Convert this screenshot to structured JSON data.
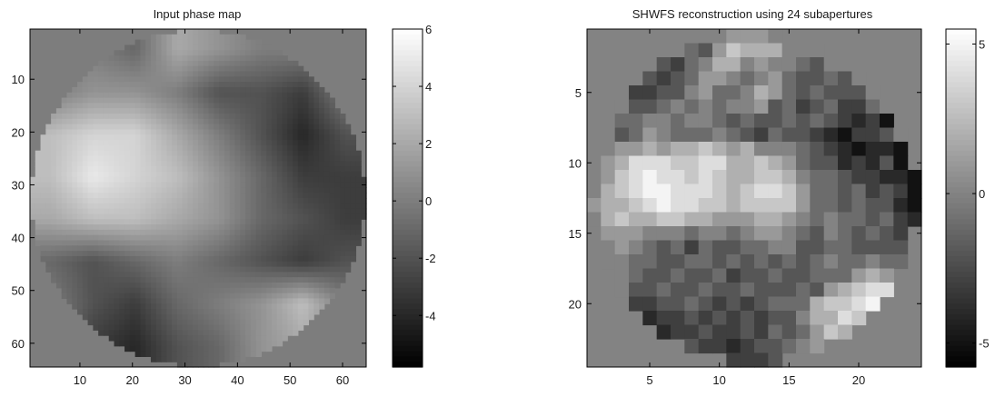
{
  "chart_data": [
    {
      "type": "heatmap",
      "title": "Input phase map",
      "xlabel": "",
      "ylabel": "",
      "grid": false,
      "x_range": [
        0.5,
        64.5
      ],
      "y_range": [
        0.5,
        64.5
      ],
      "y_direction": "top-down",
      "x_ticks": [
        10,
        20,
        30,
        40,
        50,
        60
      ],
      "y_ticks": [
        10,
        20,
        30,
        40,
        50,
        60
      ],
      "x_tick_labels": [
        "10",
        "20",
        "30",
        "40",
        "50",
        "60"
      ],
      "y_tick_labels": [
        "10",
        "20",
        "30",
        "40",
        "50",
        "60"
      ],
      "colorbar": {
        "range": [
          -5.8,
          6.0
        ],
        "ticks": [
          -4,
          -2,
          0,
          2,
          4,
          6
        ],
        "tick_labels": [
          "-4",
          "-2",
          "0",
          "2",
          "4",
          "6"
        ],
        "colormap": "gray",
        "placement": "right"
      },
      "grid_size": 64,
      "aperture": "circular",
      "background_value": 0,
      "coarse_values_8x8": [
        [
          0,
          0,
          -1,
          2,
          1,
          0,
          0,
          0
        ],
        [
          0,
          1,
          1,
          0,
          -2,
          -2,
          -3,
          0
        ],
        [
          3,
          4,
          4,
          2,
          0,
          -2,
          -4,
          -2
        ],
        [
          3,
          5,
          4,
          3,
          1,
          -1,
          -3,
          -3
        ],
        [
          2,
          3,
          3,
          2,
          1,
          -1,
          -2,
          -3
        ],
        [
          -1,
          -2,
          -1,
          0,
          -1,
          -2,
          -3,
          -2
        ],
        [
          0,
          -2,
          -3,
          -1,
          0,
          1,
          3,
          0
        ],
        [
          0,
          -3,
          -4,
          -2,
          -1,
          1,
          2,
          0
        ]
      ]
    },
    {
      "type": "heatmap",
      "title": "SHWFS reconstruction using 24 subapertures",
      "xlabel": "",
      "ylabel": "",
      "grid": false,
      "x_range": [
        0.5,
        24.5
      ],
      "y_range": [
        0.5,
        24.5
      ],
      "y_direction": "top-down",
      "x_ticks": [
        5,
        10,
        15,
        20
      ],
      "y_ticks": [
        5,
        10,
        15,
        20
      ],
      "x_tick_labels": [
        "5",
        "10",
        "15",
        "20"
      ],
      "y_tick_labels": [
        "5",
        "10",
        "15",
        "20"
      ],
      "colorbar": {
        "range": [
          -5.8,
          5.5
        ],
        "ticks": [
          -5,
          0,
          5
        ],
        "tick_labels": [
          "-5",
          "0",
          "5"
        ],
        "colormap": "gray",
        "placement": "right"
      },
      "grid_size": 24,
      "aperture": "circular",
      "background_value": 0,
      "values": [
        [
          0,
          0,
          0,
          0,
          0,
          0,
          0,
          0,
          0,
          1,
          1,
          1,
          1,
          0,
          1,
          0,
          0,
          0,
          0,
          0,
          0,
          0,
          0,
          0
        ],
        [
          0,
          0,
          0,
          0,
          0,
          0,
          0,
          -1,
          -2,
          1,
          3,
          2,
          2,
          2,
          0,
          0,
          0,
          0,
          0,
          0,
          0,
          0,
          0,
          0
        ],
        [
          0,
          0,
          0,
          0,
          0,
          -2,
          -3,
          -1,
          0,
          2,
          2,
          0,
          1,
          0,
          0,
          -1,
          -2,
          0,
          0,
          0,
          0,
          0,
          0,
          0
        ],
        [
          0,
          0,
          0,
          0,
          -2,
          -3,
          -2,
          -1,
          1,
          1,
          0,
          -1,
          0,
          1,
          -1,
          -2,
          -2,
          -1,
          -2,
          0,
          0,
          0,
          0,
          0
        ],
        [
          0,
          0,
          0,
          -3,
          -3,
          -2,
          -2,
          0,
          1,
          -1,
          -1,
          0,
          2,
          1,
          -1,
          -2,
          -1,
          -2,
          -2,
          -2,
          0,
          0,
          0,
          0
        ],
        [
          0,
          0,
          0,
          -2,
          -2,
          -1,
          0,
          -1,
          0,
          -1,
          0,
          0,
          1,
          -2,
          -1,
          -3,
          -2,
          -1,
          -3,
          -3,
          -1,
          0,
          0,
          0
        ],
        [
          0,
          0,
          -1,
          -1,
          0,
          0,
          -1,
          0,
          0,
          -1,
          -2,
          -1,
          -2,
          -2,
          -1,
          -2,
          -1,
          -2,
          -3,
          -4,
          -3,
          -5,
          0,
          0
        ],
        [
          0,
          0,
          -2,
          -1,
          1,
          0,
          -1,
          -1,
          -1,
          0,
          -1,
          -2,
          -3,
          -1,
          -2,
          -2,
          -3,
          -4,
          -5,
          -3,
          -3,
          -2,
          0,
          0
        ],
        [
          0,
          0,
          1,
          1,
          2,
          1,
          2,
          2,
          3,
          2,
          1,
          2,
          0,
          0,
          0,
          -1,
          -2,
          -3,
          -4,
          -5,
          -4,
          -4,
          -5,
          0
        ],
        [
          0,
          1,
          2,
          4,
          4,
          4,
          3,
          3,
          4,
          4,
          2,
          2,
          3,
          2,
          1,
          -1,
          -2,
          -2,
          -4,
          -3,
          -4,
          -2,
          -5,
          -6
        ],
        [
          0,
          1,
          3,
          4,
          5,
          4,
          4,
          3,
          4,
          3,
          2,
          2,
          3,
          3,
          2,
          0,
          -1,
          -1,
          -2,
          -3,
          -3,
          -4,
          -4,
          -5
        ],
        [
          0,
          2,
          3,
          4,
          5,
          5,
          4,
          4,
          4,
          3,
          2,
          3,
          4,
          4,
          3,
          1,
          -1,
          -1,
          -2,
          -1,
          -3,
          -2,
          -3,
          -5
        ],
        [
          1,
          2,
          2,
          3,
          4,
          5,
          4,
          4,
          3,
          3,
          2,
          3,
          3,
          3,
          3,
          1,
          -1,
          -1,
          -2,
          -1,
          -2,
          -2,
          -4,
          -5
        ],
        [
          0,
          2,
          3,
          2,
          2,
          3,
          3,
          2,
          2,
          1,
          1,
          1,
          2,
          2,
          1,
          0,
          -1,
          0,
          -1,
          -1,
          -2,
          -1,
          -3,
          -4
        ],
        [
          0,
          1,
          1,
          1,
          0,
          0,
          0,
          -1,
          0,
          0,
          -1,
          0,
          1,
          1,
          0,
          -1,
          -2,
          0,
          -1,
          -2,
          -1,
          -2,
          -3,
          -3
        ],
        [
          0,
          0,
          1,
          0,
          -1,
          -2,
          -1,
          -3,
          -1,
          -2,
          -2,
          -1,
          -1,
          0,
          0,
          -2,
          -2,
          -1,
          -1,
          -2,
          -2,
          -2,
          -2,
          -3
        ],
        [
          0,
          0,
          0,
          -1,
          -1,
          -2,
          -2,
          -1,
          -1,
          -2,
          -1,
          -2,
          -1,
          -2,
          -1,
          -2,
          -1,
          0,
          -1,
          -1,
          0,
          -1,
          -1,
          0
        ],
        [
          0,
          0,
          0,
          -1,
          -2,
          -2,
          -1,
          -2,
          -2,
          -1,
          -3,
          -2,
          -2,
          -1,
          -2,
          -2,
          -1,
          -1,
          -1,
          1,
          2,
          1,
          0,
          0
        ],
        [
          0,
          0,
          0,
          -2,
          -2,
          -1,
          -2,
          -2,
          -1,
          -2,
          -2,
          -1,
          -2,
          -2,
          -2,
          -1,
          -2,
          1,
          2,
          3,
          4,
          4,
          0,
          0
        ],
        [
          0,
          0,
          0,
          -3,
          -3,
          -2,
          -2,
          -1,
          -2,
          -3,
          -2,
          -3,
          -2,
          -1,
          -1,
          -1,
          2,
          3,
          3,
          4,
          5,
          3,
          0,
          0
        ],
        [
          0,
          0,
          0,
          -4,
          -4,
          -3,
          -3,
          -2,
          -3,
          -2,
          -3,
          -2,
          -3,
          -2,
          -2,
          0,
          2,
          2,
          4,
          3,
          2,
          0,
          0,
          0
        ],
        [
          0,
          0,
          0,
          0,
          -5,
          -4,
          -3,
          -3,
          -2,
          -3,
          -3,
          -2,
          -3,
          -1,
          -2,
          -1,
          1,
          3,
          2,
          2,
          0,
          0,
          0,
          0
        ],
        [
          0,
          0,
          0,
          0,
          0,
          -4,
          -4,
          -2,
          -3,
          -3,
          -4,
          -3,
          -2,
          -2,
          -1,
          0,
          1,
          2,
          0,
          0,
          0,
          0,
          0,
          0
        ],
        [
          0,
          0,
          0,
          0,
          0,
          0,
          0,
          -3,
          -4,
          -4,
          -3,
          -3,
          -3,
          -2,
          -1,
          -1,
          0,
          0,
          0,
          0,
          0,
          0,
          0,
          0
        ]
      ]
    }
  ]
}
